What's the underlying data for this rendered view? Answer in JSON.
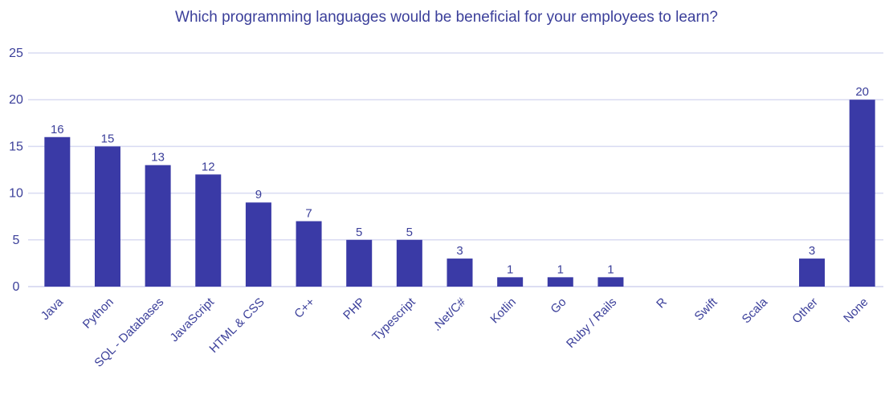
{
  "chart_data": {
    "type": "bar",
    "title": "Which programming languages would be beneficial for your employees to learn?",
    "categories": [
      "Java",
      "Python",
      "SQL - Databases",
      "JavaScript",
      "HTML & CSS",
      "C++",
      "PHP",
      "Typescript",
      ".Net/C#",
      "Kotlin",
      "Go",
      "Ruby / Rails",
      "R",
      "Swift",
      "Scala",
      "Other",
      "None"
    ],
    "values": [
      16,
      15,
      13,
      12,
      9,
      7,
      5,
      5,
      3,
      1,
      1,
      1,
      0,
      0,
      0,
      3,
      20
    ],
    "data_labels": [
      "16",
      "15",
      "13",
      "12",
      "9",
      "7",
      "5",
      "5",
      "3",
      "1",
      "1",
      "1",
      "",
      "",
      "",
      "3",
      "20"
    ],
    "ylim": [
      0,
      25
    ],
    "yticks": [
      0,
      5,
      10,
      15,
      20,
      25
    ],
    "grid": true,
    "legend": "none",
    "colors": {
      "bar": "#3a3aa6",
      "text": "#3b3f9a",
      "grid": "#d9dbf2"
    }
  }
}
